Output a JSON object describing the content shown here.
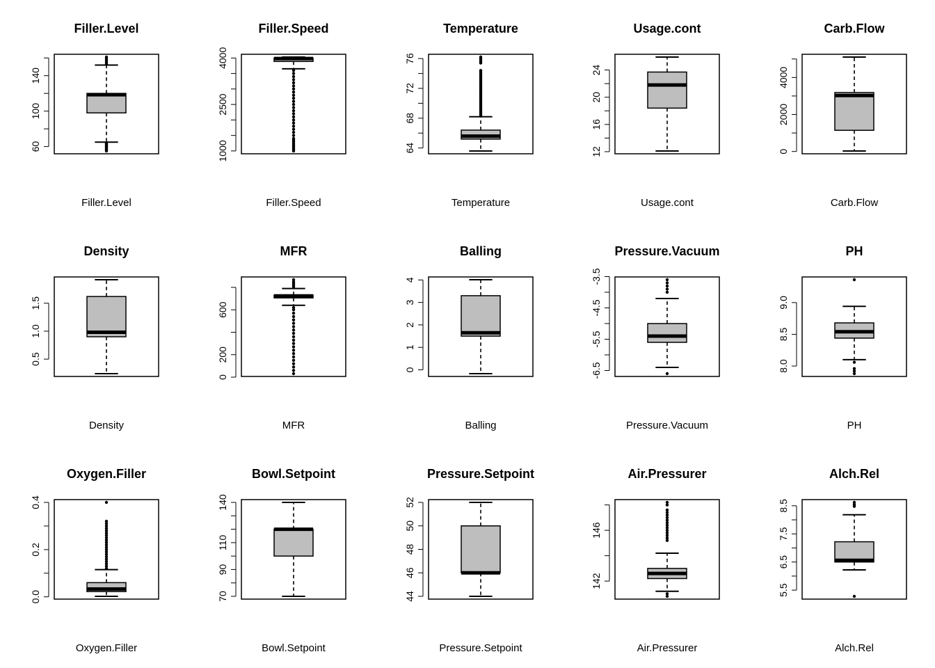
{
  "chart_data": [
    {
      "type": "boxplot",
      "title": "Filler.Level",
      "xlabel": "Filler.Level",
      "ylim": [
        55,
        161
      ],
      "ticks": [
        60,
        80,
        100,
        120,
        140,
        160
      ],
      "tick_labels": [
        "60",
        "",
        "100",
        "",
        "140",
        ""
      ],
      "whisker_low": 65,
      "q1": 98,
      "median": 118.5,
      "q3": 120,
      "whisker_high": 152,
      "outliers": [
        55,
        56,
        57,
        58,
        59,
        60,
        61,
        62,
        63,
        64,
        153,
        155,
        157,
        159,
        161
      ]
    },
    {
      "type": "boxplot",
      "title": "Filler.Speed",
      "xlabel": "Filler.Speed",
      "ylim": [
        998,
        4030
      ],
      "ticks": [
        1000,
        1500,
        2000,
        2500,
        3000,
        3500,
        4000
      ],
      "tick_labels": [
        "1000",
        "",
        "",
        "2500",
        "",
        "",
        "4000"
      ],
      "whisker_low": 3650,
      "q1": 3888,
      "median": 3982,
      "q3": 3998,
      "whisker_high": 4030,
      "outliers": [
        998,
        1050,
        1100,
        1150,
        1200,
        1250,
        1300,
        1350,
        1400,
        1500,
        1600,
        1700,
        1800,
        1900,
        2000,
        2100,
        2200,
        2300,
        2400,
        2500,
        2600,
        2700,
        2800,
        2900,
        3000,
        3100,
        3200,
        3300,
        3400,
        3500,
        3600
      ]
    },
    {
      "type": "boxplot",
      "title": "Temperature",
      "xlabel": "Temperature",
      "ylim": [
        63.6,
        76.2
      ],
      "ticks": [
        64,
        66,
        68,
        70,
        72,
        74,
        76
      ],
      "tick_labels": [
        "64",
        "",
        "68",
        "",
        "72",
        "",
        "76"
      ],
      "whisker_low": 63.6,
      "q1": 65.2,
      "median": 65.6,
      "q3": 66.4,
      "whisker_high": 68.2,
      "outliers": [
        68.4,
        68.6,
        68.8,
        69,
        69.2,
        69.4,
        69.6,
        69.8,
        70,
        70.2,
        70.4,
        70.6,
        70.8,
        71,
        71.2,
        71.4,
        71.6,
        71.8,
        72,
        72.2,
        72.4,
        72.6,
        72.8,
        73,
        73.2,
        73.4,
        73.6,
        73.8,
        74,
        74.2,
        74.4,
        75.4,
        75.6,
        75.8,
        76,
        76.2
      ]
    },
    {
      "type": "boxplot",
      "title": "Usage.cont",
      "xlabel": "Usage.cont",
      "ylim": [
        12.1,
        25.9
      ],
      "ticks": [
        12,
        14,
        16,
        18,
        20,
        22,
        24
      ],
      "tick_labels": [
        "12",
        "",
        "16",
        "",
        "20",
        "",
        "24"
      ],
      "whisker_low": 12.1,
      "q1": 18.4,
      "median": 21.8,
      "q3": 23.7,
      "whisker_high": 25.9,
      "outliers": []
    },
    {
      "type": "boxplot",
      "title": "Carb.Flow",
      "xlabel": "Carb.Flow",
      "ylim": [
        26,
        5104
      ],
      "ticks": [
        0,
        1000,
        2000,
        3000,
        4000,
        5000
      ],
      "tick_labels": [
        "0",
        "",
        "2000",
        "",
        "4000",
        ""
      ],
      "whisker_low": 26,
      "q1": 1144,
      "median": 3028,
      "q3": 3186,
      "whisker_high": 5104,
      "outliers": []
    },
    {
      "type": "boxplot",
      "title": "Density",
      "xlabel": "Density",
      "ylim": [
        0.24,
        1.92
      ],
      "ticks": [
        0.5,
        1.0,
        1.5
      ],
      "tick_labels": [
        "0.5",
        "1.0",
        "1.5"
      ],
      "whisker_low": 0.24,
      "q1": 0.9,
      "median": 0.98,
      "q3": 1.62,
      "whisker_high": 1.92,
      "outliers": []
    },
    {
      "type": "boxplot",
      "title": "MFR",
      "xlabel": "MFR",
      "ylim": [
        31,
        868
      ],
      "ticks": [
        0,
        200,
        400,
        600,
        800
      ],
      "tick_labels": [
        "0",
        "200",
        "",
        "600",
        ""
      ],
      "whisker_low": 640,
      "q1": 706,
      "median": 724,
      "q3": 731,
      "whisker_high": 790,
      "outliers": [
        31,
        60,
        90,
        120,
        150,
        180,
        210,
        240,
        270,
        300,
        330,
        360,
        390,
        420,
        450,
        480,
        510,
        540,
        570,
        600,
        620,
        805,
        820,
        835,
        850,
        868
      ]
    },
    {
      "type": "boxplot",
      "title": "Balling",
      "xlabel": "Balling",
      "ylim": [
        -0.17,
        4.01
      ],
      "ticks": [
        0,
        1,
        2,
        3,
        4
      ],
      "tick_labels": [
        "0",
        "1",
        "2",
        "3",
        "4"
      ],
      "whisker_low": -0.17,
      "q1": 1.5,
      "median": 1.65,
      "q3": 3.3,
      "whisker_high": 4.01,
      "outliers": []
    },
    {
      "type": "boxplot",
      "title": "Pressure.Vacuum",
      "xlabel": "Pressure.Vacuum",
      "ylim": [
        -6.6,
        -3.6
      ],
      "ticks": [
        -6.5,
        -6,
        -5.5,
        -5,
        -4.5,
        -4,
        -3.5
      ],
      "tick_labels": [
        "-6.5",
        "",
        "-5.5",
        "",
        "-4.5",
        "",
        "-3.5"
      ],
      "whisker_low": -6.4,
      "q1": -5.6,
      "median": -5.4,
      "q3": -5.0,
      "whisker_high": -4.2,
      "outliers": [
        -6.6,
        -3.6,
        -3.7,
        -3.8,
        -3.9,
        -4.0
      ]
    },
    {
      "type": "boxplot",
      "title": "PH",
      "xlabel": "PH",
      "ylim": [
        7.88,
        9.36
      ],
      "ticks": [
        8.0,
        8.5,
        9.0
      ],
      "tick_labels": [
        "8.0",
        "8.5",
        "9.0"
      ],
      "whisker_low": 8.1,
      "q1": 8.44,
      "median": 8.54,
      "q3": 8.68,
      "whisker_high": 8.94,
      "outliers": [
        7.88,
        7.92,
        7.96,
        8.06,
        9.36
      ]
    },
    {
      "type": "boxplot",
      "title": "Oxygen.Filler",
      "xlabel": "Oxygen.Filler",
      "ylim": [
        0.002,
        0.4
      ],
      "ticks": [
        0.0,
        0.1,
        0.2,
        0.3,
        0.4
      ],
      "tick_labels": [
        "0.0",
        "",
        "0.2",
        "",
        "0.4"
      ],
      "whisker_low": 0.002,
      "q1": 0.022,
      "median": 0.033,
      "q3": 0.06,
      "whisker_high": 0.115,
      "outliers": [
        0.12,
        0.13,
        0.14,
        0.15,
        0.16,
        0.17,
        0.18,
        0.19,
        0.2,
        0.21,
        0.22,
        0.23,
        0.24,
        0.25,
        0.26,
        0.27,
        0.28,
        0.29,
        0.3,
        0.31,
        0.32,
        0.4
      ]
    },
    {
      "type": "boxplot",
      "title": "Bowl.Setpoint",
      "xlabel": "Bowl.Setpoint",
      "ylim": [
        70,
        140
      ],
      "ticks": [
        70,
        80,
        90,
        100,
        110,
        120,
        130,
        140
      ],
      "tick_labels": [
        "70",
        "",
        "90",
        "",
        "110",
        "",
        "",
        "140"
      ],
      "whisker_low": 70,
      "q1": 100,
      "median": 120,
      "q3": 120,
      "whisker_high": 140,
      "outliers": []
    },
    {
      "type": "boxplot",
      "title": "Pressure.Setpoint",
      "xlabel": "Pressure.Setpoint",
      "ylim": [
        44,
        52
      ],
      "ticks": [
        44,
        46,
        48,
        50,
        52
      ],
      "tick_labels": [
        "44",
        "46",
        "48",
        "50",
        "52"
      ],
      "whisker_low": 44,
      "q1": 46,
      "median": 46,
      "q3": 50,
      "whisker_high": 52,
      "outliers": []
    },
    {
      "type": "boxplot",
      "title": "Air.Pressurer",
      "xlabel": "Air.Pressurer",
      "ylim": [
        140.8,
        148.2
      ],
      "ticks": [
        142,
        144,
        146,
        148
      ],
      "tick_labels": [
        "142",
        "",
        "146",
        ""
      ],
      "whisker_low": 141.2,
      "q1": 142.2,
      "median": 142.6,
      "q3": 143.0,
      "whisker_high": 144.2,
      "outliers": [
        140.8,
        141.0,
        145.2,
        145.4,
        145.6,
        145.8,
        146.0,
        146.2,
        146.4,
        146.6,
        146.8,
        147.0,
        147.2,
        147.4,
        147.6,
        148.0,
        148.2
      ]
    },
    {
      "type": "boxplot",
      "title": "Alch.Rel",
      "xlabel": "Alch.Rel",
      "ylim": [
        5.28,
        8.62
      ],
      "ticks": [
        5.5,
        6.0,
        6.5,
        7.0,
        7.5,
        8.0,
        8.5
      ],
      "tick_labels": [
        "5.5",
        "",
        "6.5",
        "",
        "7.5",
        "",
        "8.5"
      ],
      "whisker_low": 6.22,
      "q1": 6.5,
      "median": 6.56,
      "q3": 7.22,
      "whisker_high": 8.18,
      "outliers": [
        5.28,
        8.48,
        8.54,
        8.62
      ]
    }
  ],
  "colors": {
    "box_fill": "#bebebe",
    "stroke": "#000000",
    "background": "#ffffff"
  }
}
